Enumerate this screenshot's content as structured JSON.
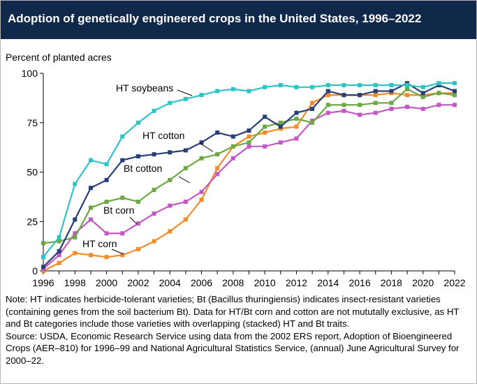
{
  "title": "Adoption of genetically engineered crops in the United States, 1996–2022",
  "note": "Note: HT indicates herbicide-tolerant varieties; Bt (Bacillus thuringiensis) indicates insect-resistant varieties (containing genes from the soil bacterium Bt). Data for HT/Bt corn and cotton are not mututally exclusive, as HT and Bt categories include those varieties with overlapping (stacked) HT and Bt traits.",
  "source": "Source: USDA, Economic Research Service using data from the 2002 ERS report, Adoption of Bioengineered Crops (AER–810) for 1996–99 and National Agricultural Statistics Service, (annual) June Agricultural Survey for 2000–22.",
  "chart_data": {
    "type": "line",
    "title": "Adoption of genetically engineered crops in the United States, 1996–2022",
    "ylabel": "Percent of planted acres",
    "xlabel": "",
    "ylim": [
      0,
      100
    ],
    "xlim": [
      1996,
      2022
    ],
    "yticks": [
      "0",
      "25",
      "50",
      "75",
      "100"
    ],
    "xticks": [
      "1996",
      "1998",
      "2000",
      "2002",
      "2004",
      "2006",
      "2008",
      "2010",
      "2012",
      "2014",
      "2016",
      "2018",
      "2020",
      "2022"
    ],
    "grid": false,
    "x": [
      1996,
      1997,
      1998,
      1999,
      2000,
      2001,
      2002,
      2003,
      2004,
      2005,
      2006,
      2007,
      2008,
      2009,
      2010,
      2011,
      2012,
      2013,
      2014,
      2015,
      2016,
      2017,
      2018,
      2019,
      2020,
      2021,
      2022
    ],
    "series": [
      {
        "name": "HT soybeans",
        "color": "#2ec4c6",
        "values": [
          7,
          17,
          44,
          56,
          54,
          68,
          75,
          81,
          85,
          87,
          89,
          91,
          92,
          91,
          93,
          94,
          93,
          93,
          94,
          94,
          94,
          94,
          94,
          94,
          93,
          95,
          95
        ]
      },
      {
        "name": "HT cotton",
        "color": "#283f78",
        "values": [
          2,
          10,
          26,
          42,
          46,
          56,
          58,
          59,
          60,
          61,
          65,
          70,
          68,
          71,
          78,
          73,
          80,
          82,
          91,
          89,
          89,
          91,
          91,
          95,
          90,
          94,
          91
        ]
      },
      {
        "name": "Bt cotton",
        "color": "#6ca845",
        "values": [
          14,
          15,
          17,
          32,
          35,
          37,
          35,
          41,
          46,
          52,
          57,
          59,
          63,
          65,
          73,
          75,
          77,
          75,
          84,
          84,
          84,
          85,
          85,
          92,
          88,
          90,
          89
        ]
      },
      {
        "name": "Bt corn",
        "color": "#c359c3",
        "values": [
          1,
          8,
          19,
          26,
          19,
          19,
          24,
          29,
          33,
          35,
          40,
          49,
          57,
          63,
          63,
          65,
          67,
          76,
          80,
          81,
          79,
          80,
          82,
          83,
          82,
          84,
          84
        ]
      },
      {
        "name": "HT corn",
        "color": "#f38b29",
        "values": [
          0,
          4,
          9,
          8,
          7,
          8,
          11,
          15,
          20,
          26,
          36,
          52,
          63,
          68,
          70,
          72,
          73,
          85,
          89,
          89,
          89,
          89,
          90,
          89,
          89,
          90,
          90
        ]
      }
    ],
    "labels": [
      "HT soybeans",
      "HT cotton",
      "Bt cotton",
      "Bt corn",
      "HT corn"
    ]
  }
}
